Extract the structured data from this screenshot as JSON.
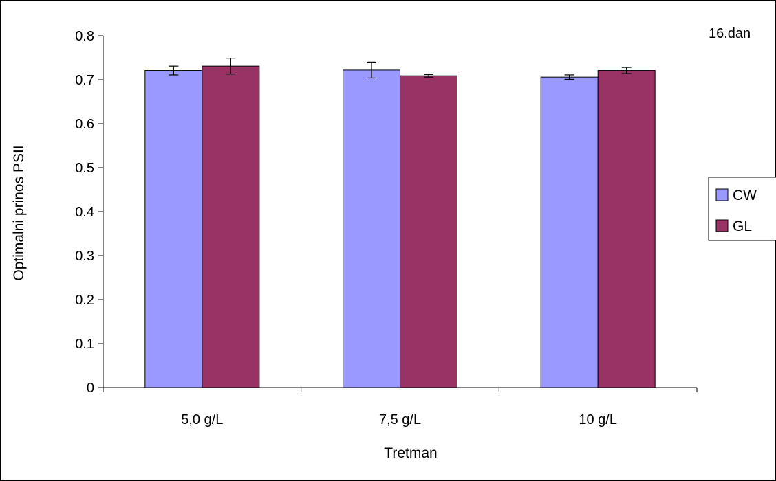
{
  "chart_data": {
    "type": "bar",
    "title": "16.dan",
    "xlabel": "Tretman",
    "ylabel": "Optimalni prinos PSII",
    "categories": [
      "5,0 g/L",
      "7,5 g/L",
      "10 g/L"
    ],
    "ylim": [
      0,
      0.8
    ],
    "yticks": [
      "0",
      "0.1",
      "0.2",
      "0.3",
      "0.4",
      "0.5",
      "0.6",
      "0.7",
      "0.8"
    ],
    "grid": false,
    "legend_position": "right",
    "series": [
      {
        "name": "CW",
        "color": "#9999ff",
        "values": [
          0.721,
          0.722,
          0.706
        ],
        "errors": [
          0.01,
          0.018,
          0.005
        ]
      },
      {
        "name": "GL",
        "color": "#993366",
        "values": [
          0.731,
          0.709,
          0.721
        ],
        "errors": [
          0.018,
          0.003,
          0.007
        ]
      }
    ]
  }
}
